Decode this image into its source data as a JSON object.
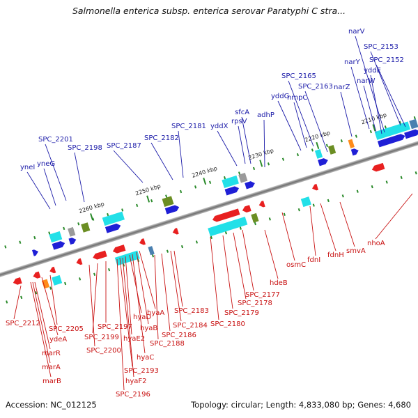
{
  "title": "Salmonella enterica subsp. enterica serovar Paratyphi C stra...",
  "footer": {
    "accession": "Accession: NC_012125",
    "topology": "Topology: circular; Length: 4,833,080 bp; Genes: 4,680"
  },
  "ticks": [
    "2210 kbp",
    "2220 kbp",
    "2230 kbp",
    "2240 kbp",
    "2250 kbp",
    "2260 kbp"
  ],
  "labels_top": [
    "narV",
    "SPC_2153",
    "narY",
    "SPC_2152",
    "yddE",
    "narW",
    "narZ",
    "SPC_2165",
    "SPC_2163",
    "nmpC",
    "yddG",
    "adhP",
    "sfcA",
    "rpsV",
    "yddX",
    "SPC_2181",
    "SPC_2182",
    "SPC_2187",
    "SPC_2198",
    "SPC_2201",
    "yneG",
    "yneI"
  ],
  "labels_bottom": [
    "nhoA",
    "smvA",
    "fdnH",
    "fdnI",
    "osmC",
    "hdeB",
    "SPC_2177",
    "SPC_2178",
    "SPC_2179",
    "SPC_2180",
    "SPC_2183",
    "SPC_2184",
    "SPC_2186",
    "SPC_2188",
    "hyaA",
    "hyaB",
    "hyaC",
    "hyaD",
    "hyaE2",
    "hyaF2",
    "SPC_2193",
    "SPC_2196",
    "SPC_2197",
    "SPC_2199",
    "SPC_2200",
    "SPC_2205",
    "ydeA",
    "SPC_2212",
    "marR",
    "marA",
    "marB"
  ],
  "colors": {
    "forward": "#1f1fd6",
    "reverse": "#e82020",
    "cyan": "#22e0e8",
    "olive": "#6b8e23",
    "steel": "#4a80b0",
    "gray": "#9a9a9a",
    "orange": "#ff8c1a",
    "lime": "#aaee55",
    "tick": "#2a8a2a",
    "backbone": "#7a7a7a",
    "label_top": "#1a1aa8",
    "label_bottom": "#c81010"
  }
}
